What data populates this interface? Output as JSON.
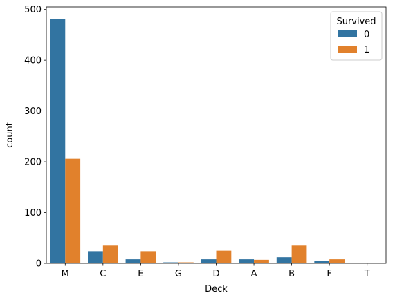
{
  "chart_data": {
    "type": "bar",
    "title": "",
    "xlabel": "Deck",
    "ylabel": "count",
    "categories": [
      "M",
      "C",
      "E",
      "G",
      "D",
      "A",
      "B",
      "F",
      "T"
    ],
    "series": [
      {
        "name": "0",
        "color": "#3274a1",
        "values": [
          481,
          24,
          8,
          2,
          8,
          8,
          12,
          5,
          1
        ]
      },
      {
        "name": "1",
        "color": "#e1812c",
        "values": [
          206,
          35,
          24,
          2,
          25,
          7,
          35,
          8,
          0
        ]
      }
    ],
    "ylim": [
      0,
      505
    ],
    "yticks": [
      0,
      100,
      200,
      300,
      400,
      500
    ],
    "legend": {
      "title": "Survived",
      "position": "top-right"
    },
    "grid": false
  }
}
